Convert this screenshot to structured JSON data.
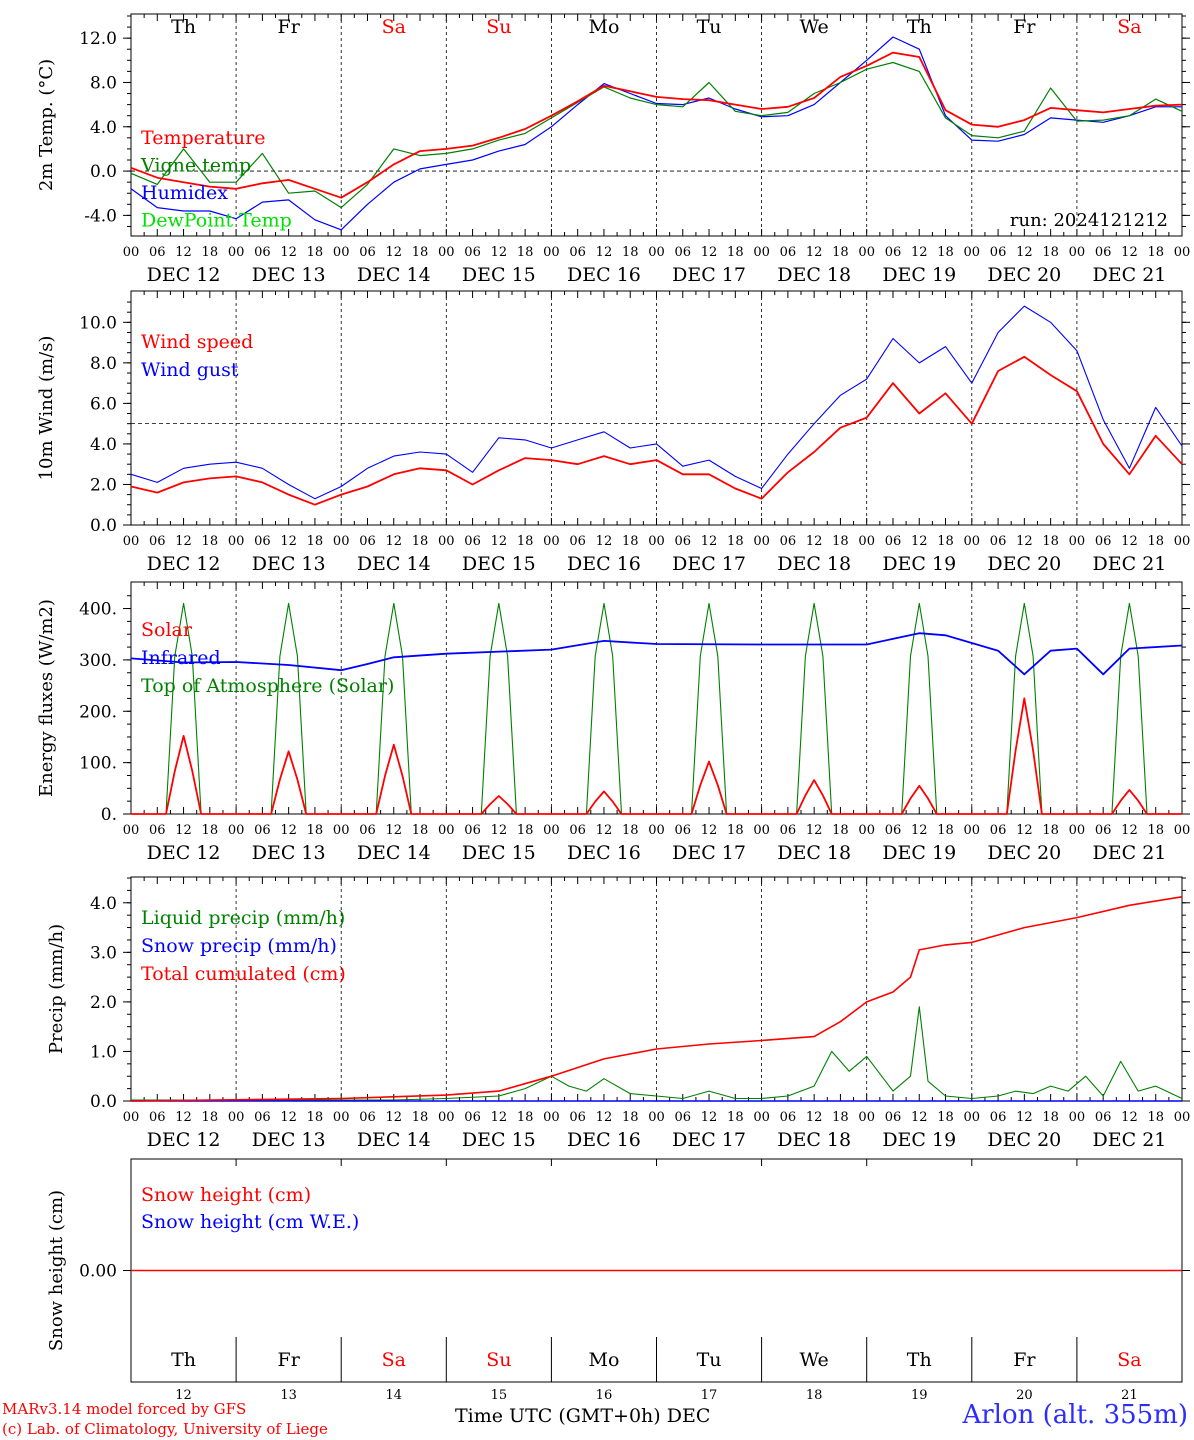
{
  "colors": {
    "red": "#ff0000",
    "blue": "#0000ff",
    "green": "#008000",
    "lime": "#00e000",
    "weekend": "#ff0000",
    "weekday": "#000000"
  },
  "footer": {
    "model_line": "MARv3.14 model forced by GFS",
    "credit_line": "(c) Lab. of Climatology, University of Liege",
    "xlabel": "Time UTC (GMT+0h) DEC",
    "station": "Arlon (alt. 355m)"
  },
  "chart_data": [
    {
      "type": "line",
      "ylabel": "2m Temp. (°C)",
      "ylim": [
        -5.5,
        14.0
      ],
      "yticks": [
        "-4.0",
        "0.0",
        "4.0",
        "8.0",
        "12.0"
      ],
      "ytick_values": [
        -4,
        0,
        4,
        8,
        12
      ],
      "refline": 0,
      "annotation": "run: 2024121212",
      "day_names": [
        "Th",
        "Fr",
        "Sa",
        "Su",
        "Mo",
        "Tu",
        "We",
        "Th",
        "Fr",
        "Sa"
      ],
      "date_labels": [
        "DEC 12",
        "DEC 13",
        "DEC 14",
        "DEC 15",
        "DEC 16",
        "DEC 17",
        "DEC 18",
        "DEC 19",
        "DEC 20",
        "DEC 21"
      ],
      "hour_labels": [
        "00",
        "06",
        "12",
        "18"
      ],
      "x_hours": [
        0,
        6,
        12,
        18,
        24,
        30,
        36,
        42,
        48,
        54,
        60,
        66,
        72,
        78,
        84,
        90,
        96,
        102,
        108,
        114,
        120,
        126,
        132,
        138,
        144,
        150,
        156,
        162,
        168,
        174,
        180,
        186,
        192,
        198,
        204,
        210,
        216,
        222,
        228,
        234,
        240
      ],
      "series": [
        {
          "name": "Temperature",
          "color": "#ff0000",
          "values": [
            0.3,
            -0.6,
            -1.0,
            -1.4,
            -1.6,
            -1.1,
            -0.8,
            -1.6,
            -2.4,
            -1.0,
            0.6,
            1.8,
            2.0,
            2.3,
            3.0,
            3.8,
            5.0,
            6.3,
            7.7,
            7.2,
            6.7,
            6.5,
            6.4,
            6.0,
            5.6,
            5.8,
            6.6,
            8.5,
            9.5,
            10.7,
            10.3,
            5.5,
            4.2,
            4.0,
            4.6,
            5.7,
            5.5,
            5.3,
            5.6,
            5.9,
            6.0
          ]
        },
        {
          "name": "Vigne temp",
          "color": "#008000",
          "values": [
            -0.2,
            -1.2,
            2.0,
            -1.0,
            -1.0,
            1.6,
            -2.0,
            -1.8,
            -3.3,
            -1.2,
            2.0,
            1.4,
            1.6,
            2.0,
            2.8,
            3.4,
            4.8,
            6.2,
            7.6,
            6.6,
            6.0,
            5.8,
            8.0,
            5.4,
            5.0,
            5.3,
            7.0,
            8.0,
            9.2,
            9.8,
            9.0,
            4.8,
            3.2,
            3.0,
            3.6,
            7.5,
            4.5,
            4.6,
            5.0,
            6.5,
            5.4
          ]
        },
        {
          "name": "Humidex",
          "color": "#0000ff",
          "values": [
            -1.6,
            -3.3,
            -3.6,
            -3.6,
            -4.3,
            -2.8,
            -2.6,
            -4.4,
            -5.3,
            -3.0,
            -1.0,
            0.2,
            0.6,
            1.0,
            1.8,
            2.4,
            4.0,
            6.0,
            7.9,
            7.0,
            6.1,
            6.0,
            6.6,
            5.6,
            4.9,
            5.0,
            6.0,
            8.0,
            10.0,
            12.1,
            11.0,
            5.0,
            2.8,
            2.7,
            3.3,
            4.8,
            4.6,
            4.4,
            5.0,
            5.8,
            5.8
          ]
        },
        {
          "name": "DewPoint Temp",
          "color": "#00e000",
          "values": []
        }
      ]
    },
    {
      "type": "line",
      "ylabel": "10m Wind (m/s)",
      "ylim": [
        0.0,
        11.2
      ],
      "yticks": [
        "0.0",
        "2.0",
        "4.0",
        "6.0",
        "8.0",
        "10.0"
      ],
      "ytick_values": [
        0,
        2,
        4,
        6,
        8,
        10
      ],
      "refline": 5,
      "date_labels": [
        "DEC 12",
        "DEC 13",
        "DEC 14",
        "DEC 15",
        "DEC 16",
        "DEC 17",
        "DEC 18",
        "DEC 19",
        "DEC 20",
        "DEC 21"
      ],
      "hour_labels": [
        "00",
        "06",
        "12",
        "18"
      ],
      "x_hours": [
        0,
        6,
        12,
        18,
        24,
        30,
        36,
        42,
        48,
        54,
        60,
        66,
        72,
        78,
        84,
        90,
        96,
        102,
        108,
        114,
        120,
        126,
        132,
        138,
        144,
        150,
        156,
        162,
        168,
        174,
        180,
        186,
        192,
        198,
        204,
        210,
        216,
        222,
        228,
        234,
        240
      ],
      "series": [
        {
          "name": "Wind speed",
          "color": "#ff0000",
          "values": [
            1.9,
            1.6,
            2.1,
            2.3,
            2.4,
            2.1,
            1.5,
            1.0,
            1.5,
            1.9,
            2.5,
            2.8,
            2.7,
            2.0,
            2.7,
            3.3,
            3.2,
            3.0,
            3.4,
            3.0,
            3.2,
            2.5,
            2.5,
            1.8,
            1.3,
            2.6,
            3.6,
            4.8,
            5.3,
            7.0,
            5.5,
            6.5,
            5.0,
            7.6,
            8.3,
            7.4,
            6.6,
            4.0,
            2.5,
            4.4,
            3.0
          ]
        },
        {
          "name": "Wind gust",
          "color": "#0000ff",
          "values": [
            2.5,
            2.1,
            2.8,
            3.0,
            3.1,
            2.8,
            2.0,
            1.3,
            1.9,
            2.8,
            3.4,
            3.6,
            3.5,
            2.6,
            4.3,
            4.2,
            3.8,
            4.2,
            4.6,
            3.8,
            4.0,
            2.9,
            3.2,
            2.4,
            1.8,
            3.5,
            5.0,
            6.4,
            7.2,
            9.2,
            8.0,
            8.8,
            7.0,
            9.5,
            10.8,
            10.0,
            8.6,
            5.2,
            2.8,
            5.8,
            3.9
          ]
        }
      ]
    },
    {
      "type": "line",
      "ylabel": "Energy fluxes (W/m2)",
      "ylim": [
        0,
        440
      ],
      "yticks": [
        "0.",
        "100.",
        "200.",
        "300.",
        "400."
      ],
      "ytick_values": [
        0,
        100,
        200,
        300,
        400
      ],
      "date_labels": [
        "DEC 12",
        "DEC 13",
        "DEC 14",
        "DEC 15",
        "DEC 16",
        "DEC 17",
        "DEC 18",
        "DEC 19",
        "DEC 20",
        "DEC 21"
      ],
      "hour_labels": [
        "00",
        "06",
        "12",
        "18"
      ],
      "infrared_hours": [
        0,
        12,
        24,
        36,
        48,
        54,
        60,
        72,
        96,
        108,
        120,
        144,
        168,
        180,
        186,
        192,
        198,
        204,
        210,
        216,
        222,
        228,
        240
      ],
      "infrared_values": [
        303,
        295,
        296,
        290,
        280,
        292,
        305,
        312,
        320,
        337,
        331,
        330,
        330,
        352,
        348,
        333,
        318,
        272,
        318,
        322,
        272,
        322,
        328
      ],
      "solar_peaks": [
        152,
        122,
        135,
        35,
        44,
        102,
        66,
        55,
        225,
        47
      ],
      "toa_peak": 410,
      "series": [
        {
          "name": "Solar",
          "color": "#ff0000"
        },
        {
          "name": "Infrared",
          "color": "#0000ff"
        },
        {
          "name": "Top of Atmosphere (Solar)",
          "color": "#008000"
        }
      ]
    },
    {
      "type": "line",
      "ylabel": "Precip (mm/h)",
      "ylim": [
        0.0,
        4.5
      ],
      "yticks": [
        "0.0",
        "1.0",
        "2.0",
        "3.0",
        "4.0"
      ],
      "ytick_values": [
        0,
        1,
        2,
        3,
        4
      ],
      "date_labels": [
        "DEC 12",
        "DEC 13",
        "DEC 14",
        "DEC 15",
        "DEC 16",
        "DEC 17",
        "DEC 18",
        "DEC 19",
        "DEC 20",
        "DEC 21"
      ],
      "hour_labels": [
        "00",
        "06",
        "12",
        "18"
      ],
      "liquid_hours": [
        0,
        60,
        72,
        84,
        90,
        96,
        100,
        104,
        108,
        114,
        120,
        126,
        132,
        138,
        144,
        150,
        156,
        160,
        164,
        168,
        174,
        178,
        180,
        182,
        186,
        192,
        198,
        202,
        206,
        210,
        214,
        218,
        222,
        226,
        230,
        234,
        240
      ],
      "liquid_values": [
        0.02,
        0.02,
        0.05,
        0.1,
        0.25,
        0.5,
        0.3,
        0.2,
        0.45,
        0.15,
        0.1,
        0.05,
        0.2,
        0.05,
        0.05,
        0.1,
        0.3,
        1.0,
        0.6,
        0.9,
        0.2,
        0.5,
        1.9,
        0.4,
        0.1,
        0.05,
        0.1,
        0.2,
        0.15,
        0.3,
        0.2,
        0.5,
        0.1,
        0.8,
        0.2,
        0.3,
        0.05
      ],
      "snow_hours": [
        0,
        240
      ],
      "snow_values": [
        0.0,
        0.0
      ],
      "cumulated_hours": [
        0,
        48,
        72,
        84,
        96,
        108,
        120,
        132,
        144,
        156,
        162,
        168,
        174,
        178,
        180,
        186,
        192,
        198,
        204,
        216,
        228,
        240
      ],
      "cumulated_values": [
        0.0,
        0.05,
        0.12,
        0.2,
        0.5,
        0.85,
        1.05,
        1.15,
        1.22,
        1.3,
        1.6,
        2.0,
        2.2,
        2.5,
        3.05,
        3.15,
        3.2,
        3.35,
        3.5,
        3.7,
        3.95,
        4.12
      ],
      "series": [
        {
          "name": "Liquid precip (mm/h)",
          "color": "#008000"
        },
        {
          "name": "Snow precip (mm/h)",
          "color": "#0000ff"
        },
        {
          "name": "Total cumulated (cm)",
          "color": "#ff0000"
        }
      ]
    },
    {
      "type": "line",
      "ylabel": "Snow height (cm)",
      "yticks": [
        "0.00"
      ],
      "ytick_values": [
        0
      ],
      "day_names": [
        "Th",
        "Fr",
        "Sa",
        "Su",
        "Mo",
        "Tu",
        "We",
        "Th",
        "Fr",
        "Sa"
      ],
      "day_numbers": [
        "12",
        "13",
        "14",
        "15",
        "16",
        "17",
        "18",
        "19",
        "20",
        "21"
      ],
      "series": [
        {
          "name": "Snow height (cm)",
          "color": "#ff0000",
          "values": [
            0.0,
            0.0
          ]
        },
        {
          "name": "Snow height (cm W.E.)",
          "color": "#0000ff",
          "values": [
            0.0,
            0.0
          ]
        }
      ]
    }
  ]
}
